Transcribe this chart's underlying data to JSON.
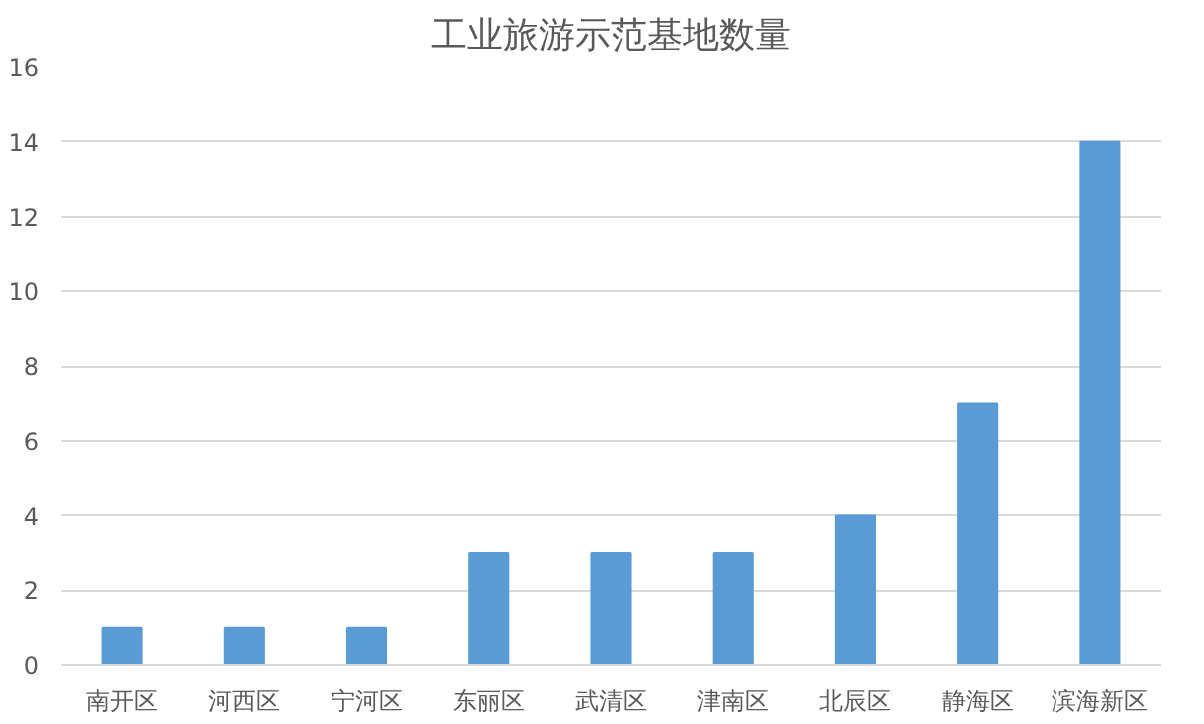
{
  "chart_data": {
    "type": "bar",
    "title": "工业旅游示范基地数量",
    "categories": [
      "南开区",
      "河西区",
      "宁河区",
      "东丽区",
      "武清区",
      "津南区",
      "北辰区",
      "静海区",
      "滨海新区"
    ],
    "values": [
      1,
      1,
      1,
      3,
      3,
      3,
      4,
      7,
      14
    ],
    "color": "#5b9bd5",
    "ylim": [
      0,
      16
    ],
    "yticks": [
      0,
      2,
      4,
      6,
      8,
      10,
      12,
      14,
      16
    ],
    "grid": "y"
  }
}
